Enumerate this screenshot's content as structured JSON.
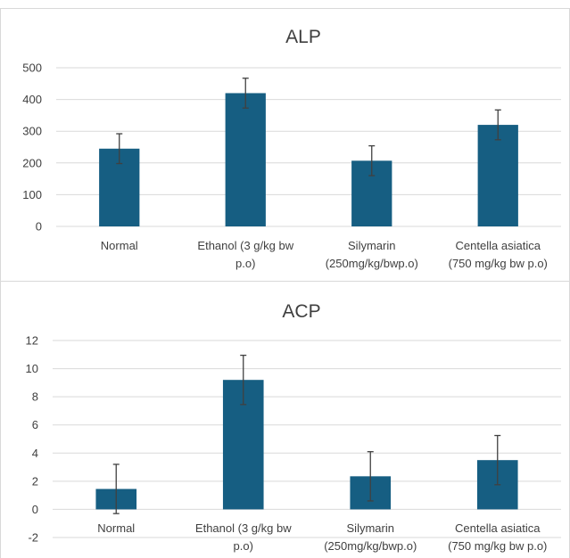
{
  "chart_data": [
    {
      "type": "bar",
      "title": "ALP",
      "categories": [
        [
          "Normal"
        ],
        [
          "Ethanol (3 g/kg bw",
          "p.o)"
        ],
        [
          "Silymarin",
          "(250mg/kg/bwp.o)"
        ],
        [
          "Centella asiatica",
          "(750 mg/kg bw p.o)"
        ]
      ],
      "values": [
        245,
        420,
        207,
        320
      ],
      "errors": [
        47,
        47,
        47,
        47
      ],
      "ylim": [
        0,
        500
      ],
      "yticks": [
        0,
        100,
        200,
        300,
        400,
        500
      ],
      "xlabel": "",
      "ylabel": "",
      "grid": true,
      "legend": "none",
      "bar_color": "#165e82",
      "grid_color": "#d9d9d9",
      "error_color": "#404040"
    },
    {
      "type": "bar",
      "title": "ACP",
      "categories": [
        [
          "Normal"
        ],
        [
          "Ethanol (3 g/kg bw",
          "p.o)"
        ],
        [
          "Silymarin",
          "(250mg/kg/bwp.o)"
        ],
        [
          "Centella asiatica",
          "(750 mg/kg bw p.o)"
        ]
      ],
      "values": [
        1.45,
        9.2,
        2.35,
        3.5
      ],
      "errors": [
        1.75,
        1.75,
        1.75,
        1.75
      ],
      "ylim": [
        -2,
        12
      ],
      "yticks": [
        -2,
        0,
        2,
        4,
        6,
        8,
        10,
        12
      ],
      "xlabel": "",
      "ylabel": "",
      "grid": true,
      "legend": "none",
      "bar_color": "#165e82",
      "grid_color": "#d9d9d9",
      "error_color": "#404040"
    }
  ]
}
